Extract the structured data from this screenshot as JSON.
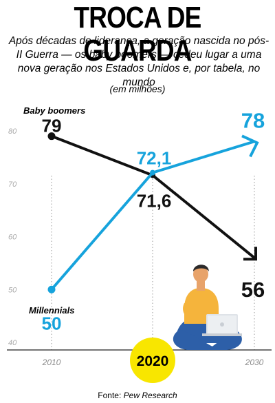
{
  "header": {
    "title": "TROCA DE GUARDA",
    "subtitle": "Após décadas de liderança, a geração nascida no pós-II Guerra — os baby boomers — cedeu lugar a uma nova geração nos Estados Unidos e, por tabela, no mundo",
    "unit": "(em milhões)"
  },
  "source": {
    "prefix": "Fonte: ",
    "name": "Pew Research"
  },
  "colors": {
    "boomers": "#111111",
    "millennials": "#16a3dc",
    "highlight": "#f8e600"
  },
  "chart_data": {
    "type": "line",
    "x": [
      "2010",
      "2020",
      "2030"
    ],
    "highlight_x": "2020",
    "yticks": [
      40,
      50,
      60,
      70,
      80
    ],
    "ylim": [
      40,
      80
    ],
    "grid": false,
    "series": [
      {
        "name": "Baby boomers",
        "values": [
          79,
          71.6,
          56
        ],
        "labels": [
          "79",
          "71,6",
          "56"
        ]
      },
      {
        "name": "Millennials",
        "values": [
          50,
          72.1,
          78
        ],
        "labels": [
          "50",
          "72,1",
          "78"
        ]
      }
    ]
  }
}
